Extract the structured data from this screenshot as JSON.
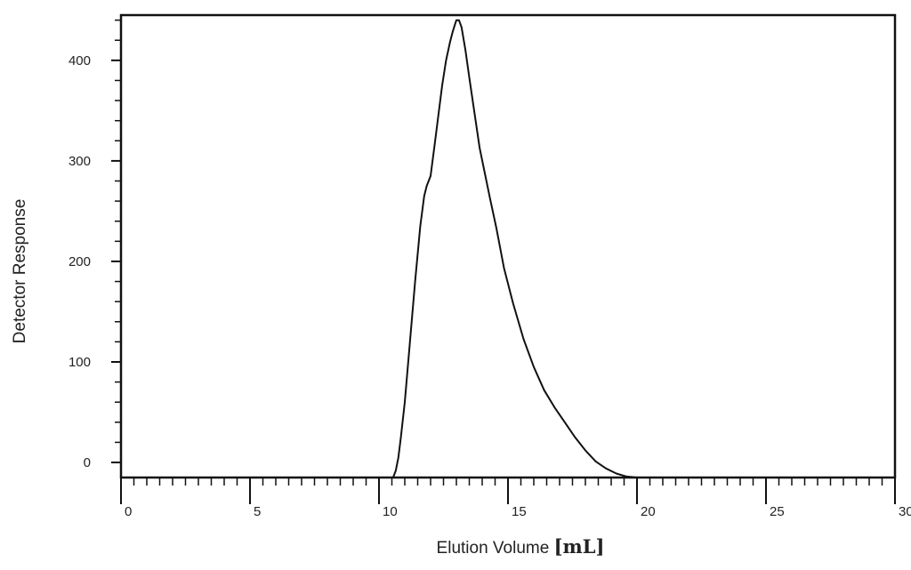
{
  "chart_data": {
    "type": "line",
    "title": "",
    "xlabel": "Elution Volume ",
    "xunit": "[mL]",
    "ylabel": "Detector Response",
    "xlim": [
      0,
      30
    ],
    "ylim": [
      -15,
      445
    ],
    "x_ticks": [
      "0",
      "5",
      "10",
      "15",
      "20",
      "25",
      "30"
    ],
    "y_ticks": [
      "0",
      "100",
      "200",
      "300",
      "400"
    ],
    "grid": false,
    "legend": "none",
    "series": [
      {
        "color": "#111111",
        "x": [
          10.55,
          10.65,
          10.75,
          10.85,
          11.0,
          11.2,
          11.4,
          11.6,
          11.75,
          11.85,
          12.0,
          12.15,
          12.3,
          12.45,
          12.6,
          12.75,
          12.85,
          12.95,
          13.0,
          13.1,
          13.2,
          13.35,
          13.5,
          13.7,
          13.9,
          14.1,
          14.3,
          14.55,
          14.85,
          15.2,
          15.6,
          16.0,
          16.4,
          16.8,
          17.2,
          17.6,
          18.0,
          18.4,
          18.8,
          19.2,
          19.6,
          20.0
        ],
        "y": [
          -15,
          -8,
          5,
          25,
          60,
          120,
          180,
          235,
          265,
          275,
          285,
          315,
          345,
          375,
          400,
          418,
          428,
          436,
          440,
          440,
          433,
          410,
          383,
          348,
          313,
          288,
          263,
          233,
          193,
          158,
          123,
          95,
          72,
          55,
          40,
          25,
          12,
          1,
          -6,
          -11,
          -14,
          -15
        ]
      }
    ]
  }
}
